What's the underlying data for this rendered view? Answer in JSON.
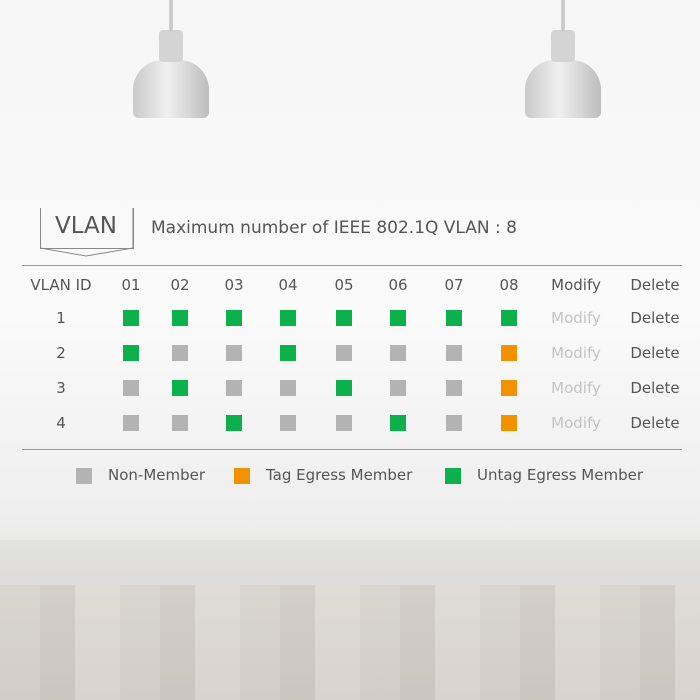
{
  "header": {
    "title": "VLAN",
    "subtitle": "Maximum number of IEEE 802.1Q VLAN : 8"
  },
  "table": {
    "columns": [
      "VLAN ID",
      "01",
      "02",
      "03",
      "04",
      "05",
      "06",
      "07",
      "08",
      "Modify",
      "Delete"
    ],
    "rows": [
      {
        "id": "1",
        "ports": [
          "U",
          "U",
          "U",
          "U",
          "U",
          "U",
          "U",
          "U"
        ],
        "modify": "Modify",
        "delete": "Delete"
      },
      {
        "id": "2",
        "ports": [
          "U",
          "N",
          "N",
          "U",
          "N",
          "N",
          "N",
          "T"
        ],
        "modify": "Modify",
        "delete": "Delete"
      },
      {
        "id": "3",
        "ports": [
          "N",
          "U",
          "N",
          "N",
          "U",
          "N",
          "N",
          "T"
        ],
        "modify": "Modify",
        "delete": "Delete"
      },
      {
        "id": "4",
        "ports": [
          "N",
          "N",
          "U",
          "N",
          "N",
          "U",
          "N",
          "T"
        ],
        "modify": "Modify",
        "delete": "Delete"
      }
    ]
  },
  "legend": [
    {
      "code": "N",
      "label": "Non-Member",
      "color": "#b3b3b3"
    },
    {
      "code": "T",
      "label": "Tag Egress Member",
      "color": "#f39200"
    },
    {
      "code": "U",
      "label": "Untag Egress Member",
      "color": "#0db14b"
    }
  ]
}
